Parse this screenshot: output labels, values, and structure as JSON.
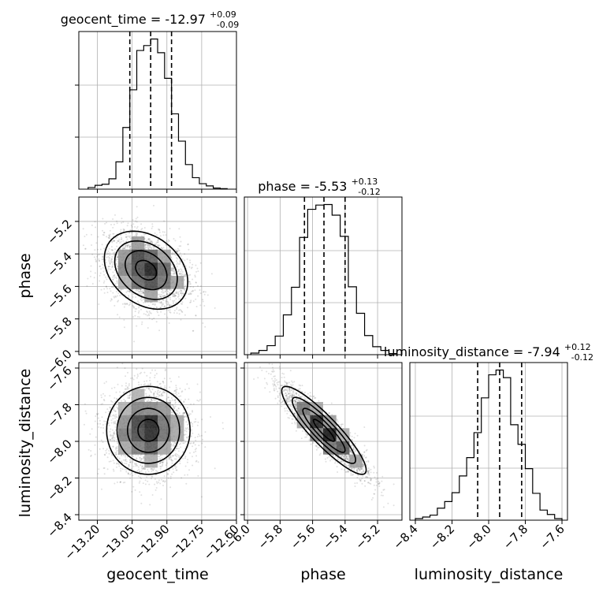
{
  "chart_data": {
    "type": "corner",
    "parameters": [
      "geocent_time",
      "phase",
      "luminosity_distance"
    ],
    "titles": [
      {
        "param": "geocent_time",
        "median": "-12.97",
        "plus": "+0.09",
        "minus": "-0.09"
      },
      {
        "param": "phase",
        "median": "-5.53",
        "plus": "+0.13",
        "minus": "-0.12"
      },
      {
        "param": "luminosity_distance",
        "median": "-7.94",
        "plus": "+0.12",
        "minus": "-0.12"
      }
    ],
    "axes": {
      "geocent_time": {
        "range": [
          -13.28,
          -12.6
        ],
        "ticks": [
          -13.2,
          -13.05,
          -12.9,
          -12.75,
          -12.6
        ],
        "tick_labels": [
          "−13.20",
          "−13.05",
          "−12.90",
          "−12.75",
          "−12.60"
        ],
        "quantiles": [
          -13.06,
          -12.97,
          -12.88
        ]
      },
      "phase": {
        "range": [
          -6.02,
          -5.05
        ],
        "ticks": [
          -6.0,
          -5.8,
          -5.6,
          -5.4,
          -5.2
        ],
        "tick_labels": [
          "−6.0",
          "−5.8",
          "−5.6",
          "−5.4",
          "−5.2"
        ],
        "quantiles": [
          -5.65,
          -5.53,
          -5.4
        ]
      },
      "luminosity_distance": {
        "range": [
          -8.43,
          -7.57
        ],
        "ticks": [
          -8.4,
          -8.2,
          -8.0,
          -7.8,
          -7.6
        ],
        "tick_labels": [
          "−8.4",
          "−8.2",
          "−8.0",
          "−7.8",
          "−7.6"
        ],
        "quantiles": [
          -8.06,
          -7.94,
          -7.82
        ]
      }
    },
    "histograms": {
      "geocent_time": {
        "bin_edges": [
          -13.24,
          -13.21,
          -13.18,
          -13.15,
          -13.12,
          -13.09,
          -13.06,
          -13.03,
          -13.0,
          -12.97,
          -12.94,
          -12.91,
          -12.88,
          -12.85,
          -12.82,
          -12.79,
          -12.76,
          -12.73,
          -12.7,
          -12.67,
          -12.64
        ],
        "counts": [
          3,
          7,
          9,
          19,
          50,
          113,
          182,
          254,
          263,
          275,
          250,
          203,
          138,
          88,
          45,
          21,
          10,
          6,
          2,
          1
        ]
      },
      "phase": {
        "bin_edges": [
          -5.98,
          -5.93,
          -5.88,
          -5.83,
          -5.78,
          -5.73,
          -5.68,
          -5.63,
          -5.58,
          -5.53,
          -5.48,
          -5.43,
          -5.38,
          -5.33,
          -5.28,
          -5.23,
          -5.18,
          -5.13,
          -5.08
        ],
        "counts": [
          3,
          8,
          17,
          35,
          75,
          127,
          221,
          274,
          282,
          283,
          263,
          223,
          128,
          78,
          36,
          15,
          8,
          2
        ]
      },
      "luminosity_distance": {
        "bin_edges": [
          -8.4,
          -8.36,
          -8.32,
          -8.28,
          -8.24,
          -8.2,
          -8.16,
          -8.12,
          -8.08,
          -8.04,
          -8.0,
          -7.96,
          -7.92,
          -7.88,
          -7.84,
          -7.8,
          -7.76,
          -7.72,
          -7.68,
          -7.64,
          -7.6
        ],
        "counts": [
          5,
          10,
          16,
          38,
          59,
          87,
          140,
          198,
          277,
          387,
          460,
          475,
          451,
          302,
          240,
          163,
          85,
          32,
          18,
          5
        ]
      }
    },
    "pairs": [
      {
        "x": "geocent_time",
        "y": "phase",
        "center": [
          -12.99,
          -5.5
        ],
        "sigma": [
          0.09,
          0.12
        ],
        "corr": -0.3
      },
      {
        "x": "geocent_time",
        "y": "luminosity_distance",
        "center": [
          -12.98,
          -7.94
        ],
        "sigma": [
          0.09,
          0.12
        ],
        "corr": 0.0
      },
      {
        "x": "phase",
        "y": "luminosity_distance",
        "center": [
          -5.53,
          -7.94
        ],
        "sigma": [
          0.13,
          0.12
        ],
        "corr": -0.9
      }
    ]
  }
}
